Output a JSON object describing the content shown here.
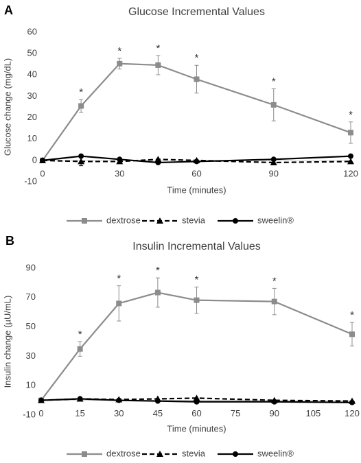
{
  "chart_data": [
    {
      "type": "line",
      "panel": "A",
      "title": "Glucose Incremental Values",
      "x_label": "Time (minutes)",
      "y_label": "Glucose change (mg/dL)",
      "x": [
        0,
        15,
        30,
        45,
        60,
        90,
        120
      ],
      "xlim": [
        0,
        120
      ],
      "xticks": [
        0,
        30,
        60,
        90,
        120
      ],
      "ylim": [
        -10,
        60
      ],
      "yticks": [
        -10,
        0,
        10,
        20,
        30,
        40,
        50,
        60
      ],
      "series": [
        {
          "name": "dextrose",
          "color": "#8c8c8c",
          "marker": "square",
          "dash": "solid",
          "values": [
            0,
            25.5,
            45.3,
            44.6,
            38,
            26,
            13
          ],
          "errors": [
            null,
            3,
            2.5,
            4.5,
            6.5,
            7.5,
            5
          ]
        },
        {
          "name": "stevia",
          "color": "#000000",
          "marker": "triangle",
          "dash": "dashed",
          "values": [
            0,
            -0.5,
            -0.5,
            0.5,
            0,
            -1,
            -0.5
          ],
          "errors": [
            null,
            2,
            null,
            null,
            null,
            null,
            null
          ]
        },
        {
          "name": "sweelin®",
          "color": "#000000",
          "marker": "circle",
          "dash": "solid",
          "values": [
            0,
            2,
            0.5,
            -1,
            -0.5,
            0.5,
            2
          ],
          "errors": [
            null,
            null,
            null,
            null,
            null,
            null,
            null
          ]
        }
      ],
      "annotations": [
        {
          "x": 15,
          "text": "*"
        },
        {
          "x": 30,
          "text": "*"
        },
        {
          "x": 45,
          "text": "*"
        },
        {
          "x": 60,
          "text": "*"
        },
        {
          "x": 90,
          "text": "*"
        },
        {
          "x": 120,
          "text": "*"
        }
      ]
    },
    {
      "type": "line",
      "panel": "B",
      "title": "Insulin Incremental Values",
      "x_label": "Time (minutes)",
      "y_label": "Insulin change (µU/mL)",
      "x": [
        0,
        15,
        30,
        45,
        60,
        90,
        120
      ],
      "xlim": [
        0,
        120
      ],
      "xticks": [
        0,
        15,
        30,
        45,
        60,
        75,
        90,
        105,
        120
      ],
      "ylim": [
        -10,
        90
      ],
      "yticks": [
        -10,
        10,
        30,
        50,
        70,
        90
      ],
      "series": [
        {
          "name": "dextrose",
          "color": "#8c8c8c",
          "marker": "square",
          "dash": "solid",
          "values": [
            0,
            35,
            66,
            73.4,
            68.2,
            67.3,
            45
          ],
          "errors": [
            null,
            5,
            12,
            10,
            9,
            9,
            8
          ]
        },
        {
          "name": "stevia",
          "color": "#000000",
          "marker": "triangle",
          "dash": "dashed",
          "values": [
            0,
            1,
            0.5,
            1,
            1.5,
            0,
            -0.5
          ],
          "errors": [
            null,
            null,
            null,
            null,
            null,
            null,
            null
          ]
        },
        {
          "name": "sweelin®",
          "color": "#000000",
          "marker": "circle",
          "dash": "solid",
          "values": [
            0,
            1,
            0,
            -0.5,
            -1,
            -1,
            -1.5
          ],
          "errors": [
            null,
            null,
            null,
            null,
            null,
            null,
            null
          ]
        }
      ],
      "annotations": [
        {
          "x": 15,
          "text": "*"
        },
        {
          "x": 30,
          "text": "*"
        },
        {
          "x": 45,
          "text": "*"
        },
        {
          "x": 60,
          "text": "*"
        },
        {
          "x": 90,
          "text": "*"
        },
        {
          "x": 120,
          "text": "*"
        }
      ]
    }
  ]
}
